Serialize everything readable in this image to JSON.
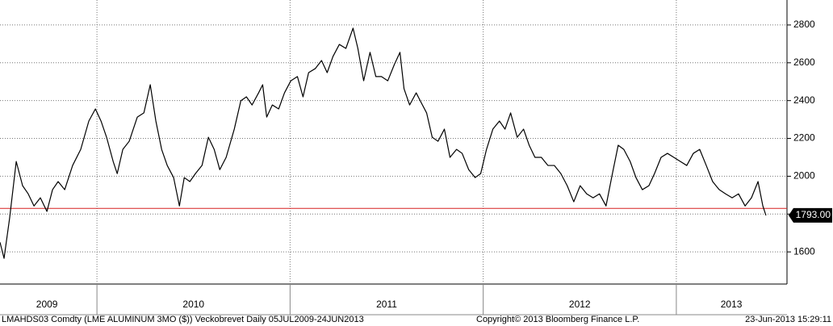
{
  "chart_data": {
    "type": "line",
    "source_note": "LMAHDS03 Comdty (LME ALUMINUM  3MO ($)) Veckobrevet  Daily 05JUL2009-24JUN2013",
    "copyright": "Copyright© 2013 Bloomberg Finance L.P.",
    "timestamp": "23-Jun-2013 15:29:11",
    "xlim": [
      2009.498,
      2013.573
    ],
    "ylim": [
      1430,
      2932
    ],
    "yticks": [
      1600,
      1800,
      2000,
      2200,
      2400,
      2600,
      2800
    ],
    "xticks": [
      {
        "value": 2009.741,
        "label": "2009"
      },
      {
        "value": 2010.5,
        "label": "2010"
      },
      {
        "value": 2011.5,
        "label": "2011"
      },
      {
        "value": 2012.5,
        "label": "2012"
      },
      {
        "value": 2013.285,
        "label": "2013"
      }
    ],
    "xgrid": [
      2010,
      2011,
      2012,
      2013
    ],
    "grid": true,
    "reference_line": {
      "value": 1830,
      "color": "#d62020"
    },
    "last_value": {
      "value": 1793,
      "label": "1793.00"
    },
    "series": [
      {
        "color": "#000000",
        "x": [
          2009.498,
          2009.519,
          2009.548,
          2009.582,
          2009.615,
          2009.644,
          2009.674,
          2009.707,
          2009.741,
          2009.77,
          2009.799,
          2009.833,
          2009.874,
          2009.916,
          2009.958,
          2009.992,
          2010.021,
          2010.05,
          2010.084,
          2010.105,
          2010.134,
          2010.167,
          2010.209,
          2010.243,
          2010.276,
          2010.305,
          2010.335,
          2010.364,
          2010.397,
          2010.427,
          2010.452,
          2010.481,
          2010.51,
          2010.544,
          2010.577,
          2010.607,
          2010.636,
          2010.669,
          2010.711,
          2010.745,
          2010.774,
          2010.803,
          2010.837,
          2010.858,
          2010.879,
          2010.908,
          2010.941,
          2010.971,
          2011.004,
          2011.038,
          2011.067,
          2011.096,
          2011.13,
          2011.163,
          2011.192,
          2011.222,
          2011.255,
          2011.289,
          2011.326,
          2011.351,
          2011.381,
          2011.414,
          2011.444,
          2011.473,
          2011.506,
          2011.54,
          2011.569,
          2011.59,
          2011.619,
          2011.653,
          2011.674,
          2011.707,
          2011.736,
          2011.766,
          2011.799,
          2011.828,
          2011.862,
          2011.891,
          2011.925,
          2011.958,
          2011.987,
          2012.017,
          2012.05,
          2012.084,
          2012.113,
          2012.142,
          2012.176,
          2012.209,
          2012.238,
          2012.268,
          2012.301,
          2012.335,
          2012.368,
          2012.402,
          2012.435,
          2012.469,
          2012.502,
          2012.536,
          2012.569,
          2012.602,
          2012.636,
          2012.669,
          2012.699,
          2012.728,
          2012.761,
          2012.791,
          2012.824,
          2012.858,
          2012.887,
          2012.921,
          2012.954,
          2012.987,
          2013.021,
          2013.054,
          2013.088,
          2013.121,
          2013.155,
          2013.188,
          2013.222,
          2013.255,
          2013.289,
          2013.322,
          2013.356,
          2013.389,
          2013.423,
          2013.448,
          2013.464
        ],
        "values": [
          1651,
          1566,
          1780,
          2078,
          1950,
          1907,
          1843,
          1886,
          1814,
          1929,
          1972,
          1929,
          2057,
          2142,
          2292,
          2356,
          2292,
          2206,
          2078,
          2014,
          2142,
          2185,
          2313,
          2335,
          2484,
          2292,
          2142,
          2057,
          1993,
          1843,
          1993,
          1972,
          2014,
          2057,
          2206,
          2142,
          2035,
          2100,
          2249,
          2399,
          2420,
          2377,
          2441,
          2484,
          2313,
          2377,
          2356,
          2441,
          2505,
          2527,
          2420,
          2548,
          2569,
          2612,
          2548,
          2633,
          2697,
          2676,
          2783,
          2676,
          2505,
          2655,
          2527,
          2527,
          2505,
          2591,
          2655,
          2463,
          2377,
          2441,
          2399,
          2335,
          2206,
          2185,
          2249,
          2100,
          2142,
          2121,
          2035,
          1993,
          2014,
          2142,
          2249,
          2292,
          2249,
          2335,
          2206,
          2249,
          2164,
          2100,
          2100,
          2057,
          2057,
          2014,
          1950,
          1865,
          1950,
          1907,
          1886,
          1907,
          1843,
          2014,
          2164,
          2142,
          2078,
          1993,
          1929,
          1950,
          2014,
          2100,
          2121,
          2100,
          2078,
          2057,
          2121,
          2142,
          2057,
          1972,
          1929,
          1907,
          1886,
          1907,
          1843,
          1886,
          1972,
          1843,
          1793
        ]
      }
    ]
  }
}
